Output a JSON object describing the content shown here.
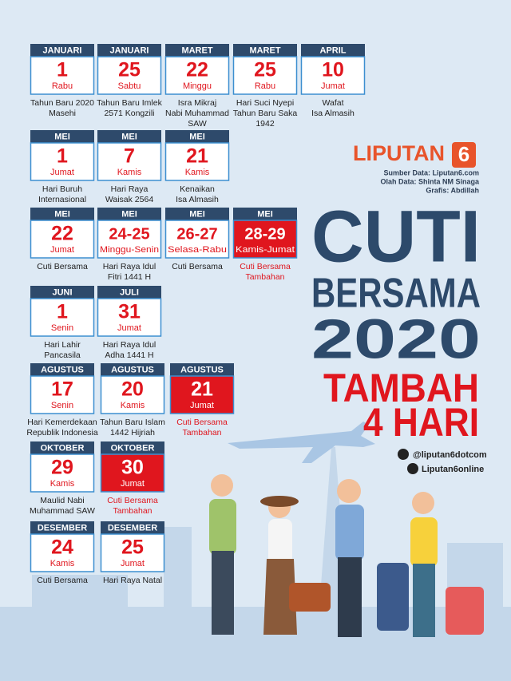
{
  "cards": [
    {
      "month": "JANUARI",
      "day": "1",
      "weekday": "Rabu",
      "note": [
        "Tahun Baru 2020",
        "Masehi"
      ]
    },
    {
      "month": "JANUARI",
      "day": "25",
      "weekday": "Sabtu",
      "note": [
        "Tahun Baru Imlek",
        "2571 Kongzili"
      ]
    },
    {
      "month": "MARET",
      "day": "22",
      "weekday": "Minggu",
      "note": [
        "Isra Mikraj",
        "Nabi Muhammad",
        "SAW"
      ]
    },
    {
      "month": "MARET",
      "day": "25",
      "weekday": "Rabu",
      "note": [
        "Hari Suci Nyepi",
        "Tahun Baru Saka",
        "1942"
      ]
    },
    {
      "month": "APRIL",
      "day": "10",
      "weekday": "Jumat",
      "note": [
        "Wafat",
        "Isa Almasih"
      ]
    },
    {
      "month": "MEI",
      "day": "1",
      "weekday": "Jumat",
      "note": [
        "Hari Buruh",
        "Internasional"
      ]
    },
    {
      "month": "MEI",
      "day": "7",
      "weekday": "Kamis",
      "note": [
        "Hari Raya",
        "Waisak 2564"
      ]
    },
    {
      "month": "MEI",
      "day": "21",
      "weekday": "Kamis",
      "note": [
        "Kenaikan",
        "Isa Almasih"
      ]
    },
    {
      "month": "MEI",
      "day": "22",
      "weekday": "Jumat",
      "note": [
        "Cuti Bersama"
      ]
    },
    {
      "month": "MEI",
      "day": "24-25",
      "weekday": "Minggu-Senin",
      "note": [
        "Hari Raya Idul",
        "Fitri 1441 H"
      ]
    },
    {
      "month": "MEI",
      "day": "26-27",
      "weekday": "Selasa-Rabu",
      "note": [
        "Cuti Bersama"
      ]
    },
    {
      "month": "MEI",
      "day": "28-29",
      "weekday": "Kamis-Jumat",
      "note": [
        "Cuti Bersama",
        "Tambahan"
      ],
      "highlight": true
    },
    {
      "month": "JUNI",
      "day": "1",
      "weekday": "Senin",
      "note": [
        "Hari Lahir",
        "Pancasila"
      ]
    },
    {
      "month": "JULI",
      "day": "31",
      "weekday": "Jumat",
      "note": [
        "Hari Raya Idul",
        "Adha 1441 H"
      ]
    },
    {
      "month": "AGUSTUS",
      "day": "17",
      "weekday": "Senin",
      "note": [
        "Hari Kemerdekaan",
        "Republik Indonesia"
      ]
    },
    {
      "month": "AGUSTUS",
      "day": "20",
      "weekday": "Kamis",
      "note": [
        "Tahun Baru Islam",
        "1442 Hijriah"
      ]
    },
    {
      "month": "AGUSTUS",
      "day": "21",
      "weekday": "Jumat",
      "note": [
        "Cuti Bersama",
        "Tambahan"
      ],
      "highlight": true
    },
    {
      "month": "OKTOBER",
      "day": "29",
      "weekday": "Kamis",
      "note": [
        "Maulid Nabi",
        "Muhammad SAW"
      ]
    },
    {
      "month": "OKTOBER",
      "day": "30",
      "weekday": "Jumat",
      "note": [
        "Cuti Bersama",
        "Tambahan"
      ],
      "highlight": true
    },
    {
      "month": "DESEMBER",
      "day": "24",
      "weekday": "Kamis",
      "note": [
        "Cuti Bersama"
      ]
    },
    {
      "month": "DESEMBER",
      "day": "25",
      "weekday": "Jumat",
      "note": [
        "Hari Raya Natal"
      ]
    }
  ],
  "brand": {
    "name": "LIPUTAN",
    "number": "6"
  },
  "credits": [
    "Sumber Data: Liputan6.com",
    "Olah Data: Shinta NM Sinaga",
    "Grafis: Abdillah"
  ],
  "title": [
    "CUTI",
    "BERSAMA",
    "2020"
  ],
  "subtitle": [
    "TAMBAH",
    "4 HARI"
  ],
  "social": {
    "twitter": "@liputan6dotcom",
    "facebook": "Liputan6online"
  }
}
